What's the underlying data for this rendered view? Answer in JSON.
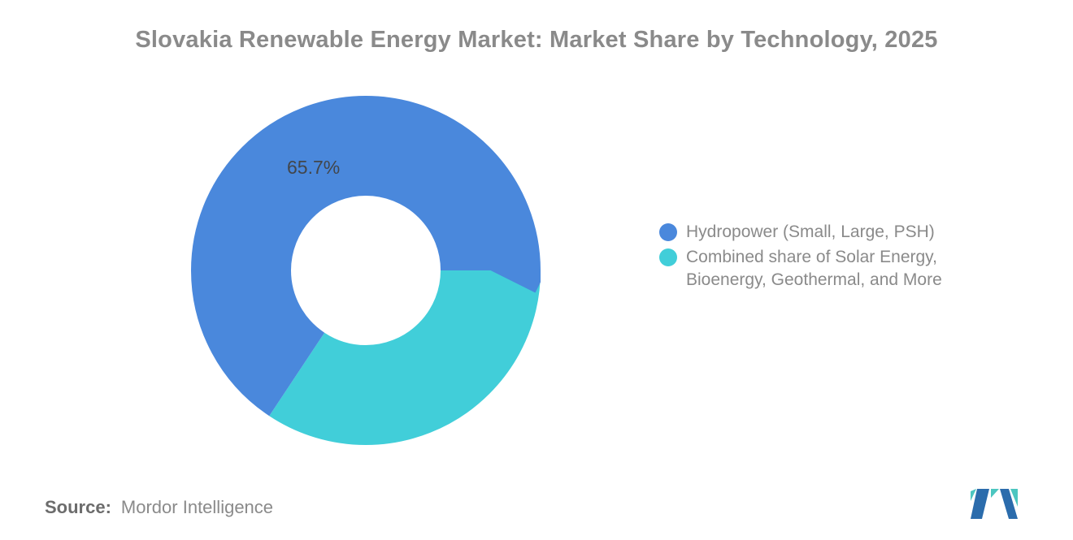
{
  "title": "Slovakia Renewable Energy Market: Market Share by Technology, 2025",
  "chart_data": {
    "type": "pie",
    "donut": true,
    "hole_ratio": 0.43,
    "title": "Slovakia Renewable Energy Market: Market Share by Technology, 2025",
    "categories": [
      "Hydropower (Small, Large, PSH)",
      "Combined share of Solar Energy, Bioenergy, Geothermal, and More"
    ],
    "values": [
      65.7,
      34.3
    ],
    "colors": [
      "#4a88dc",
      "#41ced9"
    ],
    "data_labels": [
      "65.7%",
      ""
    ],
    "slice_ids": [
      "hydropower",
      "combined-renewables"
    ],
    "start_position": "east",
    "sweep": "clockwise",
    "legend_position": "right",
    "background": "#ffffff"
  },
  "legend": {
    "items": [
      {
        "label": "Hydropower (Small, Large, PSH)",
        "lines": [
          "Hydropower (Small, Large, PSH)"
        ],
        "color": "#4a88dc"
      },
      {
        "label": "Combined share of Solar Energy, Bioenergy, Geothermal, and More",
        "lines": [
          "Combined share of Solar Energy,",
          "Bioenergy, Geothermal, and More"
        ],
        "color": "#41ced9"
      }
    ]
  },
  "source": {
    "label": "Source:",
    "value": "Mordor Intelligence"
  },
  "logo": {
    "name": "mordor-intelligence-logo",
    "colors": {
      "blue": "#2b6cac",
      "teal": "#4cc6c0"
    }
  }
}
